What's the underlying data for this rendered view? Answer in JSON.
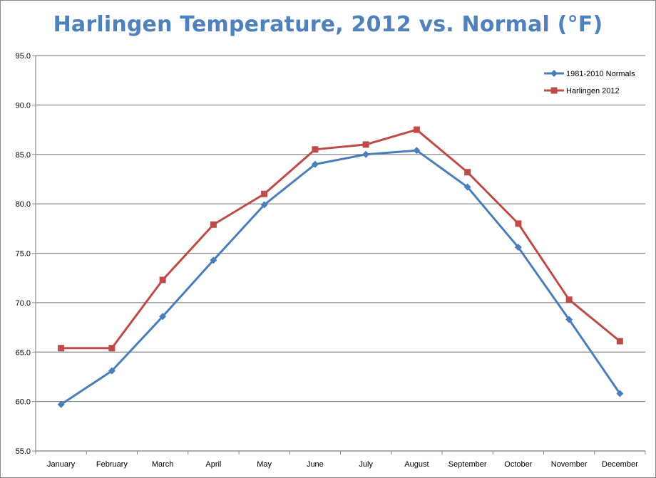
{
  "chart_data": {
    "type": "line",
    "title": "Harlingen Temperature, 2012 vs. Normal (°F)",
    "xlabel": "",
    "ylabel": "",
    "ylim": [
      55.0,
      95.0
    ],
    "ytick_step": 5.0,
    "yticks": [
      "55.0",
      "60.0",
      "65.0",
      "70.0",
      "75.0",
      "80.0",
      "85.0",
      "90.0",
      "95.0"
    ],
    "grid": true,
    "legend_position": "top-right",
    "categories": [
      "January",
      "February",
      "March",
      "April",
      "May",
      "June",
      "July",
      "August",
      "September",
      "October",
      "November",
      "December"
    ],
    "series": [
      {
        "name": "1981-2010 Normals",
        "color": "#4a7ebb",
        "marker": "diamond",
        "values": [
          59.7,
          63.1,
          68.6,
          74.3,
          79.9,
          84.0,
          85.0,
          85.4,
          81.7,
          75.6,
          68.3,
          60.8
        ]
      },
      {
        "name": "Harlingen 2012",
        "color": "#be4b48",
        "marker": "square",
        "values": [
          65.4,
          65.4,
          72.3,
          77.9,
          81.0,
          85.5,
          86.0,
          87.5,
          83.2,
          78.0,
          70.3,
          66.1
        ]
      }
    ]
  }
}
